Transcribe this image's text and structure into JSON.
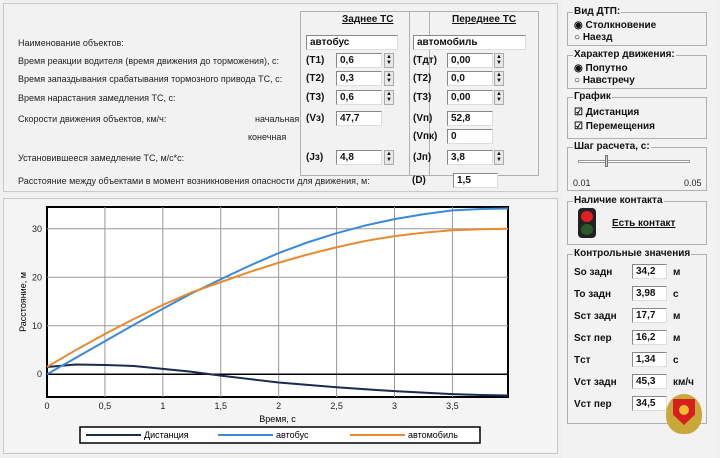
{
  "params": {
    "rear_header": "Заднее ТС",
    "front_header": "Переднее ТС",
    "rows": [
      {
        "label": "Наименование объектов:",
        "rear_code": "",
        "rear": "автобус",
        "front_code": "",
        "front": "автомобиль"
      },
      {
        "label": "Время реакции водителя (время движения до торможения), с:",
        "rear_code": "(T1)",
        "rear": "0,6",
        "front_code": "(Tдт)",
        "front": "0,00"
      },
      {
        "label": "Время запаздывания срабатывания тормозного привода ТС, с:",
        "rear_code": "(T2)",
        "rear": "0,3",
        "front_code": "(T2)",
        "front": "0,0"
      },
      {
        "label": "Время нарастания замедления ТС, с:",
        "rear_code": "(T3)",
        "rear": "0,6",
        "front_code": "(T3)",
        "front": "0,00"
      },
      {
        "label": "Скорости движения объектов, км/ч:",
        "sub": "начальная",
        "rear_code": "(Vз)",
        "rear": "47,7",
        "front_code": "(Vп)",
        "front": "52,8"
      },
      {
        "sub": "конечная",
        "front_code": "(Vпк)",
        "front": "0"
      },
      {
        "label": "Установившееся замедление ТС, м/с*с:",
        "rear_code": "(Jз)",
        "rear": "4,8",
        "front_code": "(Jп)",
        "front": "3,8"
      }
    ],
    "distance_label": "Расстояние между объектами в момент возникновения опасности для движения, м:",
    "distance_code": "(D)",
    "distance": "1,5"
  },
  "side": {
    "crash_type": {
      "title": "Вид ДТП:",
      "options": [
        "Столкновение",
        "Наезд"
      ],
      "selected": 0
    },
    "motion": {
      "title": "Характер движения:",
      "options": [
        "Попутно",
        "Навстречу"
      ],
      "selected": 0
    },
    "graph": {
      "title": "График",
      "options": [
        "Дистанция",
        "Перемещения"
      ],
      "checked": [
        true,
        true
      ]
    },
    "step": {
      "title": "Шаг расчета, с:",
      "min": "0.01",
      "max": "0.05",
      "value_fraction": 0.25
    },
    "contact": {
      "title": "Наличие контакта",
      "link": "Есть контакт"
    },
    "control": {
      "title": "Контрольные значения",
      "rows": [
        {
          "label": "So задн",
          "value": "34,2",
          "unit": "м"
        },
        {
          "label": "To задн",
          "value": "3,98",
          "unit": "с"
        },
        {
          "label": "Sст задн",
          "value": "17,7",
          "unit": "м"
        },
        {
          "label": "Sст пер",
          "value": "16,2",
          "unit": "м"
        },
        {
          "label": "Tст",
          "value": "1,34",
          "unit": "с"
        },
        {
          "label": "Vст задн",
          "value": "45,3",
          "unit": "км/ч"
        },
        {
          "label": "Vст пер",
          "value": "34,5",
          "unit": ""
        }
      ]
    }
  },
  "chart_data": {
    "type": "line",
    "xlabel": "Время, с",
    "ylabel": "Расстояние, м",
    "xlim": [
      0,
      3.98
    ],
    "ylim": [
      -4.7,
      34.5
    ],
    "xticks": [
      "0",
      "0,5",
      "1",
      "1,5",
      "2",
      "2,5",
      "3",
      "3,5"
    ],
    "xtick_values": [
      0,
      0.5,
      1,
      1.5,
      2,
      2.5,
      3,
      3.5
    ],
    "yticks": [
      "0",
      "10",
      "20",
      "30"
    ],
    "ytick_values": [
      0,
      10,
      20,
      30
    ],
    "x": [
      0,
      0.25,
      0.5,
      0.75,
      1,
      1.25,
      1.5,
      1.75,
      2,
      2.25,
      2.5,
      2.75,
      3,
      3.25,
      3.5,
      3.75,
      3.98
    ],
    "series": [
      {
        "name": "Дистанция",
        "color": "#1a2a50",
        "values": [
          1.5,
          2.0,
          1.9,
          1.7,
          1.1,
          0.5,
          -0.3,
          -1.0,
          -1.7,
          -2.2,
          -2.7,
          -3.1,
          -3.5,
          -3.8,
          -4.1,
          -4.3,
          -4.4
        ]
      },
      {
        "name": "автобус",
        "color": "#3a8ad8",
        "values": [
          0,
          3.4,
          6.8,
          10.2,
          13.5,
          16.7,
          19.6,
          22.4,
          25.0,
          27.2,
          29.1,
          30.7,
          32.0,
          33.0,
          33.8,
          34.1,
          34.2
        ]
      },
      {
        "name": "автомобиль",
        "color": "#e88a30",
        "values": [
          1.5,
          5.0,
          8.3,
          11.4,
          14.3,
          16.9,
          19.0,
          21.1,
          23.0,
          24.7,
          26.2,
          27.5,
          28.5,
          29.2,
          29.7,
          29.9,
          30.0
        ]
      }
    ],
    "legend": "bottom",
    "grid": true
  }
}
